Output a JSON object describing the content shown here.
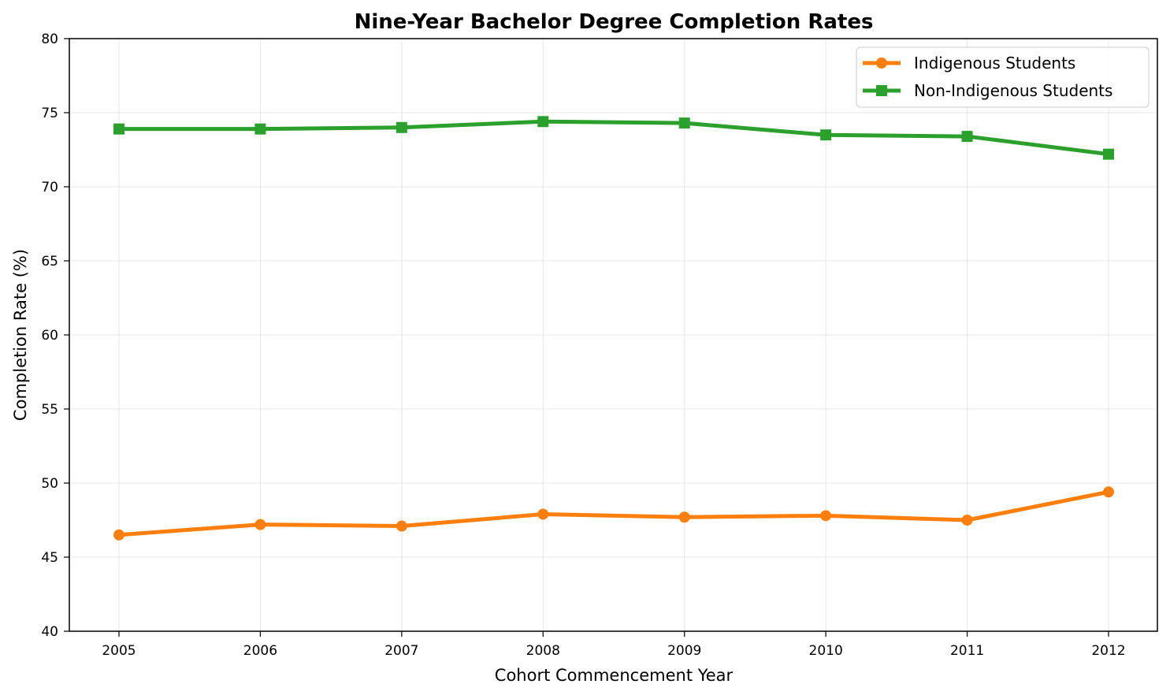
{
  "chart_data": {
    "type": "line",
    "title": "Nine-Year Bachelor Degree Completion Rates",
    "xlabel": "Cohort Commencement Year",
    "ylabel": "Completion Rate (%)",
    "x": [
      "2005",
      "2006",
      "2007",
      "2008",
      "2009",
      "2010",
      "2011",
      "2012"
    ],
    "ylim": [
      40,
      80
    ],
    "yticks": [
      "40",
      "45",
      "50",
      "55",
      "60",
      "65",
      "70",
      "75",
      "80"
    ],
    "grid": true,
    "legend_position": "top-right",
    "series": [
      {
        "name": "Indigenous Students",
        "color": "#ff7f0e",
        "marker": "circle",
        "values": [
          46.5,
          47.2,
          47.1,
          47.9,
          47.7,
          47.8,
          47.5,
          49.4
        ]
      },
      {
        "name": "Non-Indigenous Students",
        "color": "#2ca02c",
        "marker": "square",
        "values": [
          73.9,
          73.9,
          74.0,
          74.4,
          74.3,
          73.5,
          73.4,
          72.2
        ]
      }
    ]
  }
}
